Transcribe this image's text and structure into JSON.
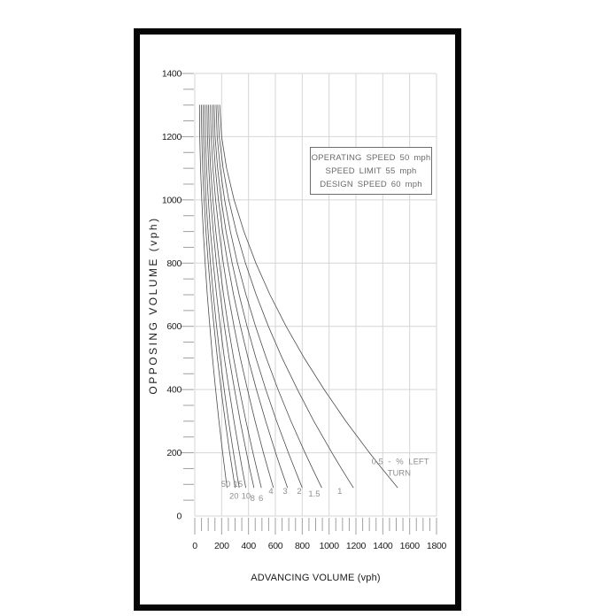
{
  "info_box": {
    "lines": [
      "OPERATING SPEED 50 mph",
      "SPEED LIMIT 55 mph",
      "DESIGN SPEED 60 mph"
    ]
  },
  "colors": {
    "grid": "#d6d6d6",
    "tick": "#a0a0a0",
    "curve": "#4d4d4d",
    "axis_text": "#1b1b1b",
    "muted_text": "#8f8f8f",
    "frame": "#060606",
    "box_border": "#6e6e6e"
  },
  "chart_data": {
    "type": "line",
    "title": "",
    "xlabel": "ADVANCING VOLUME (vph)",
    "ylabel": "OPPOSING VOLUME (vph)",
    "xlim": [
      0,
      1800
    ],
    "ylim": [
      0,
      1400
    ],
    "x_ticks": [
      0,
      200,
      400,
      600,
      800,
      1000,
      1200,
      1400,
      1600,
      1800
    ],
    "y_ticks": [
      0,
      200,
      400,
      600,
      800,
      1000,
      1200,
      1400
    ],
    "minor_tick_step": 50,
    "grid": true,
    "series_unit": "percent left turns",
    "legend": {
      "lines": [
        {
          "text": "0.5 - % LEFT",
          "x": 1530,
          "y": 164
        },
        {
          "text": "TURN",
          "x": 1522,
          "y": 128
        }
      ]
    },
    "series": [
      {
        "name": "50",
        "label_x": 231,
        "label_y": 92,
        "points": [
          [
            35,
            1300
          ],
          [
            37,
            1200
          ],
          [
            43,
            1100
          ],
          [
            52,
            1000
          ],
          [
            63,
            900
          ],
          [
            77,
            800
          ],
          [
            93,
            700
          ],
          [
            112,
            600
          ],
          [
            132,
            500
          ],
          [
            155,
            400
          ],
          [
            180,
            300
          ],
          [
            208,
            200
          ],
          [
            222,
            150
          ],
          [
            237,
            100
          ],
          [
            240,
            90
          ]
        ]
      },
      {
        "name": "20",
        "label_x": 292,
        "label_y": 55,
        "points": [
          [
            49,
            1300
          ],
          [
            52,
            1200
          ],
          [
            59,
            1100
          ],
          [
            69,
            1000
          ],
          [
            83,
            900
          ],
          [
            100,
            800
          ],
          [
            120,
            700
          ],
          [
            143,
            600
          ],
          [
            168,
            500
          ],
          [
            196,
            400
          ],
          [
            227,
            300
          ],
          [
            260,
            200
          ],
          [
            278,
            150
          ],
          [
            296,
            100
          ],
          [
            300,
            90
          ]
        ]
      },
      {
        "name": "15",
        "label_x": 322,
        "label_y": 92,
        "points": [
          [
            62,
            1300
          ],
          [
            65,
            1200
          ],
          [
            73,
            1100
          ],
          [
            84,
            1000
          ],
          [
            99,
            900
          ],
          [
            117,
            800
          ],
          [
            138,
            700
          ],
          [
            162,
            600
          ],
          [
            189,
            500
          ],
          [
            219,
            400
          ],
          [
            252,
            300
          ],
          [
            288,
            200
          ],
          [
            307,
            150
          ],
          [
            326,
            100
          ],
          [
            330,
            90
          ]
        ]
      },
      {
        "name": "10",
        "label_x": 382,
        "label_y": 55,
        "points": [
          [
            76,
            1300
          ],
          [
            79,
            1200
          ],
          [
            88,
            1100
          ],
          [
            101,
            1000
          ],
          [
            117,
            900
          ],
          [
            138,
            800
          ],
          [
            162,
            700
          ],
          [
            190,
            600
          ],
          [
            220,
            500
          ],
          [
            255,
            400
          ],
          [
            292,
            300
          ],
          [
            332,
            200
          ],
          [
            353,
            150
          ],
          [
            375,
            100
          ],
          [
            380,
            90
          ]
        ]
      },
      {
        "name": "8",
        "label_x": 430,
        "label_y": 48,
        "points": [
          [
            90,
            1300
          ],
          [
            94,
            1200
          ],
          [
            104,
            1100
          ],
          [
            118,
            1000
          ],
          [
            138,
            900
          ],
          [
            161,
            800
          ],
          [
            189,
            700
          ],
          [
            221,
            600
          ],
          [
            256,
            500
          ],
          [
            296,
            400
          ],
          [
            338,
            300
          ],
          [
            385,
            200
          ],
          [
            409,
            150
          ],
          [
            435,
            100
          ],
          [
            440,
            90
          ]
        ]
      },
      {
        "name": "6",
        "label_x": 492,
        "label_y": 48,
        "points": [
          [
            103,
            1300
          ],
          [
            107,
            1200
          ],
          [
            118,
            1100
          ],
          [
            135,
            1000
          ],
          [
            156,
            900
          ],
          [
            183,
            800
          ],
          [
            214,
            700
          ],
          [
            249,
            600
          ],
          [
            289,
            500
          ],
          [
            333,
            400
          ],
          [
            381,
            300
          ],
          [
            433,
            200
          ],
          [
            461,
            150
          ],
          [
            489,
            100
          ],
          [
            495,
            90
          ]
        ]
      },
      {
        "name": "4",
        "label_x": 567,
        "label_y": 70,
        "points": [
          [
            117,
            1300
          ],
          [
            122,
            1200
          ],
          [
            135,
            1100
          ],
          [
            155,
            1000
          ],
          [
            181,
            900
          ],
          [
            212,
            800
          ],
          [
            249,
            700
          ],
          [
            292,
            600
          ],
          [
            339,
            500
          ],
          [
            392,
            400
          ],
          [
            449,
            300
          ],
          [
            511,
            200
          ],
          [
            544,
            150
          ],
          [
            578,
            100
          ],
          [
            585,
            90
          ]
        ]
      },
      {
        "name": "3",
        "label_x": 673,
        "label_y": 70,
        "points": [
          [
            131,
            1300
          ],
          [
            137,
            1200
          ],
          [
            153,
            1100
          ],
          [
            176,
            1000
          ],
          [
            207,
            900
          ],
          [
            245,
            800
          ],
          [
            289,
            700
          ],
          [
            340,
            600
          ],
          [
            396,
            500
          ],
          [
            459,
            400
          ],
          [
            528,
            300
          ],
          [
            602,
            200
          ],
          [
            641,
            150
          ],
          [
            682,
            100
          ],
          [
            690,
            90
          ]
        ]
      },
      {
        "name": "2",
        "label_x": 778,
        "label_y": 70,
        "points": [
          [
            144,
            1300
          ],
          [
            151,
            1200
          ],
          [
            170,
            1100
          ],
          [
            197,
            1000
          ],
          [
            233,
            900
          ],
          [
            278,
            800
          ],
          [
            330,
            700
          ],
          [
            389,
            600
          ],
          [
            455,
            500
          ],
          [
            529,
            400
          ],
          [
            609,
            300
          ],
          [
            697,
            200
          ],
          [
            743,
            150
          ],
          [
            790,
            100
          ],
          [
            800,
            90
          ]
        ]
      },
      {
        "name": "1.5",
        "label_x": 890,
        "label_y": 62,
        "points": [
          [
            158,
            1300
          ],
          [
            167,
            1200
          ],
          [
            189,
            1100
          ],
          [
            222,
            1000
          ],
          [
            265,
            900
          ],
          [
            318,
            800
          ],
          [
            381,
            700
          ],
          [
            452,
            600
          ],
          [
            532,
            500
          ],
          [
            620,
            400
          ],
          [
            716,
            300
          ],
          [
            821,
            200
          ],
          [
            876,
            150
          ],
          [
            933,
            100
          ],
          [
            945,
            90
          ]
        ]
      },
      {
        "name": "1",
        "label_x": 1080,
        "label_y": 70,
        "points": [
          [
            171,
            1300
          ],
          [
            182,
            1200
          ],
          [
            211,
            1100
          ],
          [
            253,
            1000
          ],
          [
            309,
            900
          ],
          [
            377,
            800
          ],
          [
            457,
            700
          ],
          [
            548,
            600
          ],
          [
            650,
            500
          ],
          [
            764,
            400
          ],
          [
            887,
            300
          ],
          [
            1021,
            200
          ],
          [
            1092,
            150
          ],
          [
            1165,
            100
          ],
          [
            1180,
            90
          ]
        ]
      },
      {
        "name": "0.5",
        "label_x": 1530,
        "label_y": 164,
        "points": [
          [
            185,
            1300
          ],
          [
            200,
            1200
          ],
          [
            237,
            1100
          ],
          [
            293,
            1000
          ],
          [
            366,
            900
          ],
          [
            455,
            800
          ],
          [
            560,
            700
          ],
          [
            680,
            600
          ],
          [
            814,
            500
          ],
          [
            963,
            400
          ],
          [
            1125,
            300
          ],
          [
            1301,
            200
          ],
          [
            1394,
            150
          ],
          [
            1490,
            100
          ],
          [
            1510,
            90
          ]
        ]
      }
    ]
  }
}
